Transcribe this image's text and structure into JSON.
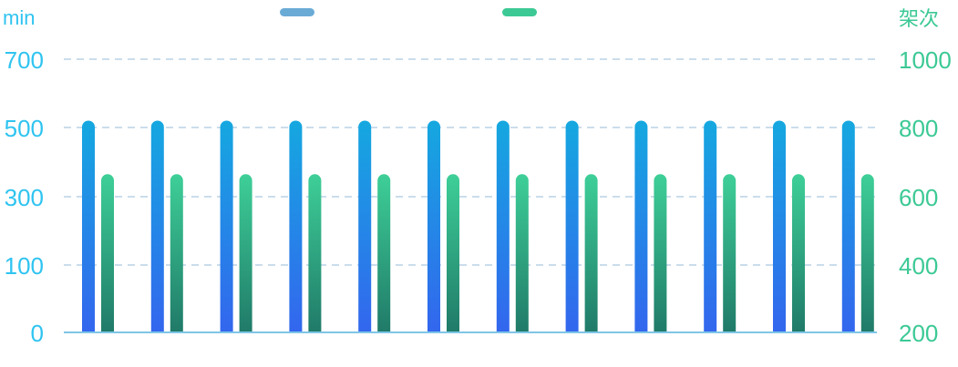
{
  "chart_data": {
    "type": "bar",
    "categories": [
      "",
      "",
      "",
      "",
      "",
      "",
      "",
      "",
      "",
      "",
      "",
      ""
    ],
    "left_axis": {
      "unit_label": "min",
      "ticks": [
        0,
        100,
        300,
        500,
        700
      ],
      "color": "#2fc4f0"
    },
    "right_axis": {
      "unit_label": "架次",
      "ticks": [
        200,
        400,
        600,
        800,
        1000
      ],
      "color": "#3cc995"
    },
    "series": [
      {
        "axis": "left",
        "values": [
          520,
          520,
          520,
          520,
          520,
          520,
          520,
          520,
          520,
          520,
          520,
          520
        ],
        "gradient_top": "#15a8e0",
        "gradient_bottom": "#3366ee",
        "legend_color": "#6aabd6"
      },
      {
        "axis": "right",
        "values": [
          665,
          665,
          665,
          665,
          665,
          665,
          665,
          665,
          665,
          665,
          665,
          665
        ],
        "gradient_top": "#3ecf98",
        "gradient_bottom": "#207a68",
        "legend_color": "#3cc995"
      }
    ],
    "grid": true,
    "legend_position": "top"
  }
}
